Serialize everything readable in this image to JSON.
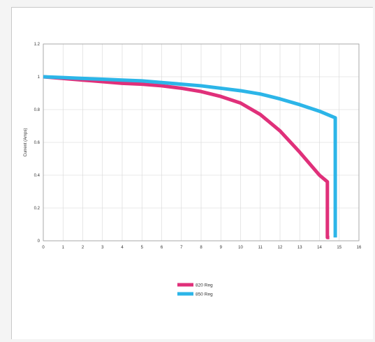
{
  "chart_data": {
    "type": "line",
    "title": "",
    "xlabel": "",
    "ylabel": "Current (Amps)",
    "xlim": [
      0,
      16
    ],
    "ylim": [
      0,
      1.2
    ],
    "x_ticks": [
      "0",
      "1",
      "2",
      "3",
      "4",
      "5",
      "6",
      "7",
      "8",
      "9",
      "10",
      "11",
      "12",
      "13",
      "14",
      "15",
      "16"
    ],
    "y_ticks": [
      "0",
      "0.2",
      "0.4",
      "0.6",
      "0.8",
      "1",
      "1.2"
    ],
    "grid": true,
    "legend_position": "bottom-center",
    "series": [
      {
        "name": "820 Reg",
        "color": "#e0307a",
        "x": [
          0,
          1,
          2,
          3,
          4,
          5,
          6,
          7,
          8,
          9,
          10,
          11,
          12,
          13,
          14,
          14.4,
          14.4,
          14.5
        ],
        "y": [
          1.0,
          0.99,
          0.98,
          0.97,
          0.96,
          0.955,
          0.945,
          0.93,
          0.91,
          0.88,
          0.84,
          0.77,
          0.67,
          0.54,
          0.4,
          0.36,
          0.02,
          0.02
        ]
      },
      {
        "name": "850 Reg",
        "color": "#2cb5e8",
        "x": [
          0,
          1,
          2,
          3,
          4,
          5,
          6,
          7,
          8,
          9,
          10,
          11,
          12,
          13,
          14,
          14.6,
          14.8,
          14.8
        ],
        "y": [
          1.0,
          0.995,
          0.99,
          0.985,
          0.98,
          0.975,
          0.965,
          0.955,
          0.945,
          0.93,
          0.915,
          0.895,
          0.865,
          0.83,
          0.79,
          0.76,
          0.75,
          0.02
        ]
      }
    ]
  }
}
